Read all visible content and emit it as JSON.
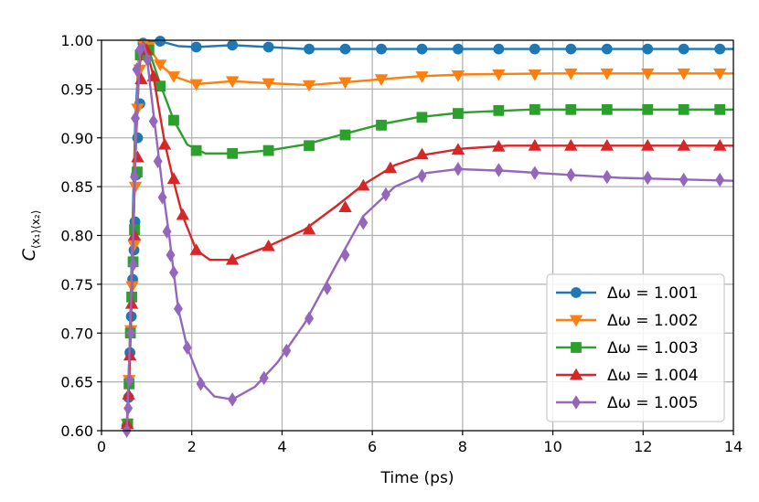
{
  "chart_data": {
    "type": "line",
    "title": "",
    "xlabel": "Time (ps)",
    "ylabel": "C",
    "ylabel_subscript": "⟨x₁⟩⟨x₂⟩",
    "xlim": [
      0,
      14
    ],
    "ylim": [
      0.6,
      1.0
    ],
    "xticks": [
      "0",
      "2",
      "4",
      "6",
      "8",
      "10",
      "12",
      "14"
    ],
    "yticks": [
      "0.60",
      "0.65",
      "0.70",
      "0.75",
      "0.80",
      "0.85",
      "0.90",
      "0.95",
      "1.00"
    ],
    "grid": true,
    "legend_position": "lower-right",
    "series": [
      {
        "name": "Δω = 1.001",
        "color": "#1f77b4",
        "marker": "circle",
        "line": [
          [
            0.56,
            0.6
          ],
          [
            0.62,
            0.68
          ],
          [
            0.68,
            0.8
          ],
          [
            0.75,
            0.92
          ],
          [
            0.83,
            0.985
          ],
          [
            0.92,
            0.998
          ],
          [
            1.1,
            0.999
          ],
          [
            1.3,
            0.999
          ],
          [
            1.7,
            0.994
          ],
          [
            2.1,
            0.993
          ],
          [
            2.9,
            0.995
          ],
          [
            3.7,
            0.993
          ],
          [
            4.5,
            0.991
          ],
          [
            6,
            0.991
          ],
          [
            8,
            0.991
          ],
          [
            14,
            0.991
          ]
        ],
        "markers": [
          [
            0.56,
            0.605
          ],
          [
            0.6,
            0.634
          ],
          [
            0.63,
            0.68
          ],
          [
            0.66,
            0.717
          ],
          [
            0.69,
            0.755
          ],
          [
            0.72,
            0.785
          ],
          [
            0.74,
            0.814
          ],
          [
            0.77,
            0.862
          ],
          [
            0.8,
            0.9
          ],
          [
            0.85,
            0.935
          ],
          [
            0.92,
            0.997
          ],
          [
            1.3,
            0.999
          ],
          [
            2.1,
            0.993
          ],
          [
            2.9,
            0.995
          ],
          [
            3.7,
            0.993
          ],
          [
            4.6,
            0.991
          ],
          [
            5.4,
            0.991
          ],
          [
            6.2,
            0.991
          ],
          [
            7.1,
            0.991
          ],
          [
            7.9,
            0.991
          ],
          [
            8.8,
            0.991
          ],
          [
            9.6,
            0.991
          ],
          [
            10.4,
            0.991
          ],
          [
            11.2,
            0.991
          ],
          [
            12.1,
            0.991
          ],
          [
            12.9,
            0.991
          ],
          [
            13.7,
            0.991
          ]
        ]
      },
      {
        "name": "Δω = 1.002",
        "color": "#ff7f0e",
        "marker": "triangle-down",
        "line": [
          [
            0.56,
            0.6
          ],
          [
            0.62,
            0.68
          ],
          [
            0.68,
            0.78
          ],
          [
            0.75,
            0.9
          ],
          [
            0.83,
            0.98
          ],
          [
            0.9,
            0.998
          ],
          [
            1.05,
            0.993
          ],
          [
            1.3,
            0.975
          ],
          [
            1.6,
            0.963
          ],
          [
            2.1,
            0.955
          ],
          [
            2.9,
            0.958
          ],
          [
            3.7,
            0.956
          ],
          [
            4.6,
            0.954
          ],
          [
            5.4,
            0.957
          ],
          [
            6.2,
            0.96
          ],
          [
            7,
            0.963
          ],
          [
            8,
            0.965
          ],
          [
            10,
            0.966
          ],
          [
            14,
            0.966
          ]
        ],
        "markers": [
          [
            0.57,
            0.607
          ],
          [
            0.61,
            0.652
          ],
          [
            0.65,
            0.703
          ],
          [
            0.68,
            0.748
          ],
          [
            0.72,
            0.79
          ],
          [
            0.75,
            0.85
          ],
          [
            0.8,
            0.93
          ],
          [
            0.85,
            0.97
          ],
          [
            0.92,
            0.996
          ],
          [
            1.05,
            0.993
          ],
          [
            1.3,
            0.975
          ],
          [
            1.6,
            0.963
          ],
          [
            2.1,
            0.955
          ],
          [
            2.9,
            0.958
          ],
          [
            3.7,
            0.956
          ],
          [
            4.6,
            0.954
          ],
          [
            5.4,
            0.957
          ],
          [
            6.2,
            0.96
          ],
          [
            7.1,
            0.963
          ],
          [
            7.9,
            0.964
          ],
          [
            8.8,
            0.965
          ],
          [
            9.6,
            0.965
          ],
          [
            10.4,
            0.966
          ],
          [
            11.2,
            0.966
          ],
          [
            12.1,
            0.966
          ],
          [
            12.9,
            0.966
          ],
          [
            13.7,
            0.966
          ]
        ]
      },
      {
        "name": "Δω = 1.003",
        "color": "#2ca02c",
        "marker": "square",
        "line": [
          [
            0.56,
            0.6
          ],
          [
            0.62,
            0.66
          ],
          [
            0.68,
            0.76
          ],
          [
            0.75,
            0.88
          ],
          [
            0.83,
            0.97
          ],
          [
            0.92,
            0.998
          ],
          [
            1.05,
            0.99
          ],
          [
            1.3,
            0.955
          ],
          [
            1.6,
            0.918
          ],
          [
            1.9,
            0.893
          ],
          [
            2.3,
            0.884
          ],
          [
            2.9,
            0.884
          ],
          [
            3.7,
            0.887
          ],
          [
            4.5,
            0.893
          ],
          [
            5.3,
            0.903
          ],
          [
            6.2,
            0.914
          ],
          [
            7,
            0.921
          ],
          [
            8,
            0.926
          ],
          [
            9.5,
            0.929
          ],
          [
            14,
            0.929
          ]
        ],
        "markers": [
          [
            0.58,
            0.607
          ],
          [
            0.61,
            0.648
          ],
          [
            0.64,
            0.7
          ],
          [
            0.67,
            0.737
          ],
          [
            0.7,
            0.773
          ],
          [
            0.73,
            0.806
          ],
          [
            0.79,
            0.865
          ],
          [
            0.86,
            0.985
          ],
          [
            1.05,
            0.99
          ],
          [
            1.3,
            0.953
          ],
          [
            1.6,
            0.918
          ],
          [
            2.1,
            0.887
          ],
          [
            2.9,
            0.884
          ],
          [
            3.7,
            0.887
          ],
          [
            4.6,
            0.892
          ],
          [
            5.4,
            0.903
          ],
          [
            6.2,
            0.913
          ],
          [
            7.1,
            0.921
          ],
          [
            7.9,
            0.925
          ],
          [
            8.8,
            0.928
          ],
          [
            9.6,
            0.929
          ],
          [
            10.4,
            0.929
          ],
          [
            11.2,
            0.929
          ],
          [
            12.1,
            0.929
          ],
          [
            12.9,
            0.929
          ],
          [
            13.7,
            0.929
          ]
        ]
      },
      {
        "name": "Δω = 1.004",
        "color": "#d62728",
        "marker": "triangle-up",
        "line": [
          [
            0.56,
            0.6
          ],
          [
            0.62,
            0.66
          ],
          [
            0.68,
            0.76
          ],
          [
            0.75,
            0.88
          ],
          [
            0.83,
            0.97
          ],
          [
            0.92,
            0.998
          ],
          [
            1,
            0.99
          ],
          [
            1.15,
            0.963
          ],
          [
            1.4,
            0.895
          ],
          [
            1.6,
            0.855
          ],
          [
            1.8,
            0.82
          ],
          [
            2.1,
            0.785
          ],
          [
            2.4,
            0.775
          ],
          [
            2.9,
            0.775
          ],
          [
            3.7,
            0.789
          ],
          [
            4.5,
            0.806
          ],
          [
            5.2,
            0.83
          ],
          [
            5.8,
            0.852
          ],
          [
            6.5,
            0.872
          ],
          [
            7.2,
            0.883
          ],
          [
            8,
            0.889
          ],
          [
            9,
            0.892
          ],
          [
            14,
            0.892
          ]
        ],
        "markers": [
          [
            0.57,
            0.607
          ],
          [
            0.6,
            0.637
          ],
          [
            0.63,
            0.677
          ],
          [
            0.67,
            0.73
          ],
          [
            0.73,
            0.8
          ],
          [
            0.8,
            0.88
          ],
          [
            0.88,
            0.96
          ],
          [
            1.0,
            0.99
          ],
          [
            1.15,
            0.963
          ],
          [
            1.4,
            0.893
          ],
          [
            1.6,
            0.858
          ],
          [
            1.8,
            0.821
          ],
          [
            2.1,
            0.785
          ],
          [
            2.9,
            0.775
          ],
          [
            3.7,
            0.789
          ],
          [
            4.6,
            0.806
          ],
          [
            5.4,
            0.829
          ],
          [
            5.8,
            0.851
          ],
          [
            6.4,
            0.869
          ],
          [
            7.1,
            0.883
          ],
          [
            7.9,
            0.888
          ],
          [
            8.8,
            0.891
          ],
          [
            9.6,
            0.892
          ],
          [
            10.4,
            0.892
          ],
          [
            11.2,
            0.892
          ],
          [
            12.1,
            0.892
          ],
          [
            12.9,
            0.892
          ],
          [
            13.7,
            0.892
          ]
        ]
      },
      {
        "name": "Δω = 1.005",
        "color": "#9467bd",
        "marker": "diamond",
        "line": [
          [
            0.56,
            0.6
          ],
          [
            0.62,
            0.68
          ],
          [
            0.7,
            0.8
          ],
          [
            0.78,
            0.92
          ],
          [
            0.86,
            0.99
          ],
          [
            0.92,
            0.998
          ],
          [
            1,
            0.985
          ],
          [
            1.15,
            0.925
          ],
          [
            1.35,
            0.85
          ],
          [
            1.5,
            0.8
          ],
          [
            1.7,
            0.725
          ],
          [
            1.9,
            0.685
          ],
          [
            2.2,
            0.65
          ],
          [
            2.5,
            0.635
          ],
          [
            2.9,
            0.632
          ],
          [
            3.4,
            0.645
          ],
          [
            3.9,
            0.67
          ],
          [
            4.5,
            0.71
          ],
          [
            5.2,
            0.77
          ],
          [
            5.8,
            0.82
          ],
          [
            6.5,
            0.85
          ],
          [
            7.2,
            0.864
          ],
          [
            7.9,
            0.868
          ],
          [
            9,
            0.866
          ],
          [
            10,
            0.863
          ],
          [
            11.5,
            0.859
          ],
          [
            14,
            0.856
          ]
        ],
        "markers": [
          [
            0.56,
            0.6
          ],
          [
            0.59,
            0.623
          ],
          [
            0.62,
            0.652
          ],
          [
            0.65,
            0.7
          ],
          [
            0.7,
            0.77
          ],
          [
            0.73,
            0.86
          ],
          [
            0.75,
            0.92
          ],
          [
            0.78,
            0.97
          ],
          [
            0.85,
            0.99
          ],
          [
            1.02,
            0.98
          ],
          [
            1.15,
            0.917
          ],
          [
            1.25,
            0.876
          ],
          [
            1.35,
            0.839
          ],
          [
            1.45,
            0.804
          ],
          [
            1.53,
            0.78
          ],
          [
            1.6,
            0.762
          ],
          [
            1.7,
            0.725
          ],
          [
            1.9,
            0.685
          ],
          [
            2.2,
            0.648
          ],
          [
            2.9,
            0.632
          ],
          [
            3.6,
            0.654
          ],
          [
            4.1,
            0.682
          ],
          [
            4.6,
            0.715
          ],
          [
            5.0,
            0.746
          ],
          [
            5.4,
            0.78
          ],
          [
            5.8,
            0.813
          ],
          [
            6.3,
            0.842
          ],
          [
            7.1,
            0.861
          ],
          [
            7.9,
            0.868
          ],
          [
            8.8,
            0.867
          ],
          [
            9.6,
            0.864
          ],
          [
            10.4,
            0.862
          ],
          [
            11.2,
            0.86
          ],
          [
            12.1,
            0.859
          ],
          [
            12.9,
            0.857
          ],
          [
            13.7,
            0.857
          ]
        ]
      }
    ]
  }
}
